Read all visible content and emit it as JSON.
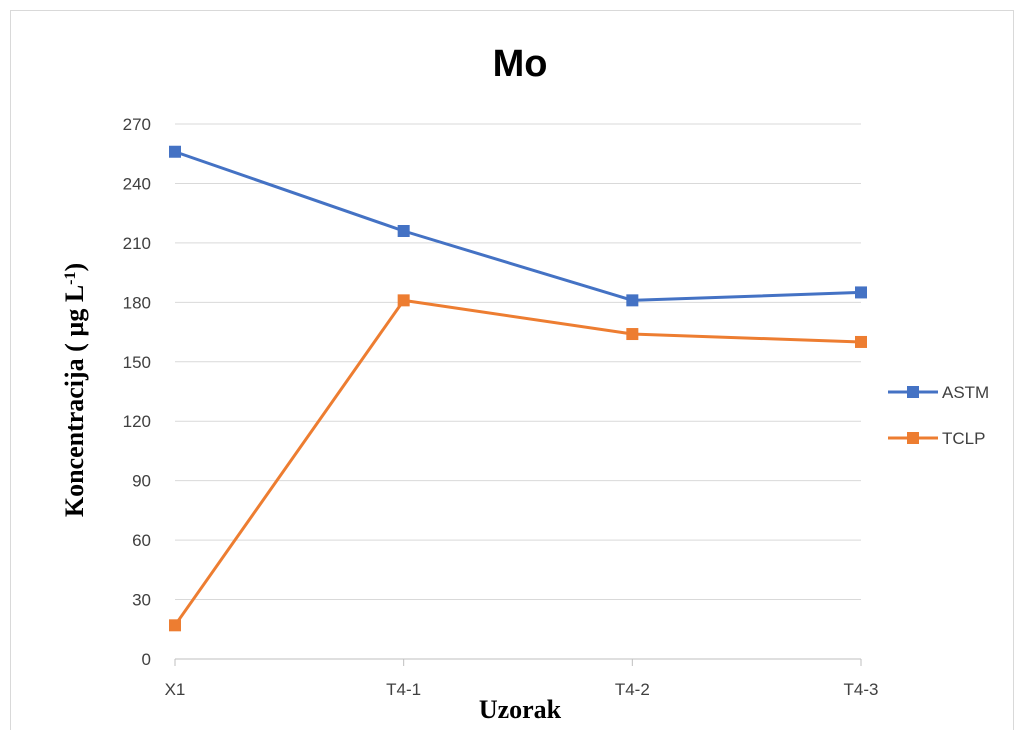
{
  "chart_data": {
    "type": "line",
    "title": "Mo",
    "xlabel": "Uzorak",
    "ylabel": "Koncentracija ( µg L",
    "ylabel_sup": "-1",
    "ylabel_end": ")",
    "categories": [
      "X1",
      "T4-1",
      "T4-2",
      "T4-3"
    ],
    "ylim": [
      0,
      270
    ],
    "yticks": [
      0,
      30,
      60,
      90,
      120,
      150,
      180,
      210,
      240,
      270
    ],
    "grid": true,
    "legend_position": "right",
    "series": [
      {
        "name": "ASTM",
        "color": "#4472C4",
        "values": [
          256,
          216,
          181,
          185
        ]
      },
      {
        "name": "TCLP",
        "color": "#ED7D31",
        "values": [
          17,
          181,
          164,
          160
        ]
      }
    ]
  }
}
